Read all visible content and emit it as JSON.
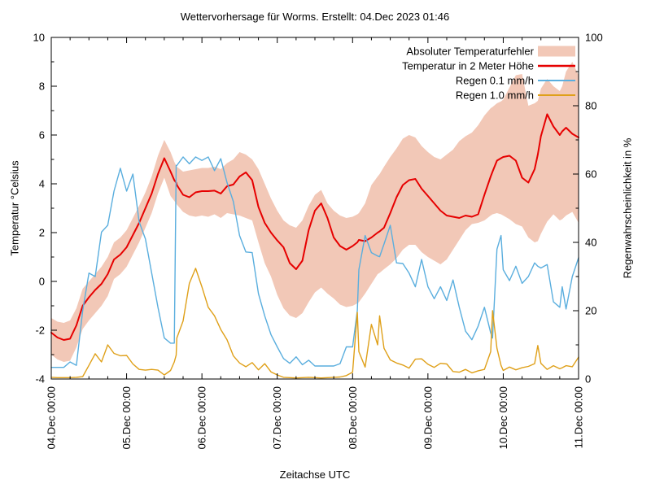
{
  "title": "Wettervorhersage für Worms. Erstellt: 04.Dec 2023 01:46",
  "chart_data": {
    "type": "line",
    "title": "Wettervorhersage für Worms. Erstellt: 04.Dec 2023 01:46",
    "x_label": "Zeitachse UTC",
    "x_tick_labels": [
      "04.Dec 00:00",
      "05.Dec 00:00",
      "06.Dec 00:00",
      "07.Dec 00:00",
      "08.Dec 00:00",
      "09.Dec 00:00",
      "10.Dec 00:00",
      "11.Dec 00:00"
    ],
    "x_range_hours": [
      0,
      168
    ],
    "x_major_step_hours": 24,
    "x_minor_step_hours": 6,
    "grid": false,
    "legend_position": "top-right-inside",
    "y_left": {
      "label": "Temperatur °Celsius",
      "min": -4,
      "max": 10,
      "ticks": [
        10,
        8,
        6,
        4,
        2,
        0,
        -2,
        -4
      ],
      "minor_step": 1
    },
    "y_right": {
      "label": "Regenwahrscheinlichkeit in %",
      "min": 0,
      "max": 100,
      "ticks": [
        100,
        80,
        60,
        40,
        20,
        0
      ],
      "minor_step": 10
    },
    "x_hours": [
      0,
      2,
      4,
      6,
      8,
      10,
      12,
      14,
      16,
      18,
      20,
      22,
      24,
      26,
      28,
      30,
      32,
      34,
      36,
      38,
      39.2,
      39.8,
      40,
      42,
      44,
      46,
      48,
      50,
      52,
      54,
      56,
      58,
      60,
      62,
      64,
      66,
      68,
      70,
      72,
      74,
      76,
      78,
      80,
      82,
      84,
      86,
      88,
      90,
      92,
      94,
      96,
      97.5,
      98,
      100,
      102,
      104,
      104.6,
      106,
      108,
      110,
      112,
      114,
      116,
      118,
      120,
      122,
      124,
      126,
      128,
      130,
      132,
      134,
      136,
      138,
      140,
      140.6,
      142,
      143.3,
      144,
      146,
      148,
      150,
      152,
      154,
      155,
      156,
      158,
      160,
      162,
      162.8,
      164,
      166,
      168
    ],
    "series": [
      {
        "name": "Absoluter Temperaturfehler",
        "kind": "band",
        "axis": "left",
        "color": "#f2c8b7",
        "upper": [
          -1.5,
          -1.65,
          -1.7,
          -1.6,
          -1.1,
          -0.3,
          0.0,
          0.3,
          0.6,
          1.0,
          1.6,
          1.8,
          2.1,
          2.6,
          3.1,
          3.65,
          4.3,
          5.15,
          5.8,
          5.3,
          4.9,
          4.75,
          4.7,
          4.5,
          4.55,
          4.6,
          4.65,
          4.65,
          4.7,
          4.6,
          4.85,
          5.0,
          5.3,
          5.2,
          5.0,
          4.6,
          4.0,
          3.4,
          2.9,
          2.5,
          2.3,
          2.2,
          2.5,
          3.1,
          3.55,
          3.75,
          3.2,
          2.9,
          2.7,
          2.6,
          2.65,
          2.75,
          2.8,
          3.2,
          3.95,
          4.3,
          4.4,
          4.7,
          5.1,
          5.45,
          5.85,
          6.0,
          5.9,
          5.55,
          5.3,
          5.1,
          5.0,
          5.2,
          5.4,
          5.75,
          5.95,
          6.1,
          6.4,
          6.8,
          7.1,
          7.15,
          7.3,
          7.38,
          7.45,
          7.95,
          8.45,
          8.5,
          7.2,
          7.3,
          7.4,
          7.9,
          8.3,
          8.0,
          7.8,
          8.0,
          8.6,
          9.0,
          8.45
        ],
        "lower": [
          -3.0,
          -3.2,
          -3.3,
          -3.25,
          -2.7,
          -1.95,
          -1.6,
          -1.3,
          -1.0,
          -0.6,
          0.1,
          0.3,
          0.6,
          1.1,
          1.6,
          2.2,
          2.8,
          3.6,
          4.25,
          3.5,
          3.3,
          3.2,
          3.15,
          2.85,
          2.7,
          2.65,
          2.7,
          2.65,
          2.75,
          2.6,
          2.8,
          2.75,
          2.7,
          2.6,
          2.5,
          1.6,
          0.75,
          0.2,
          -0.55,
          -1.1,
          -1.4,
          -1.5,
          -1.3,
          -0.85,
          -0.45,
          -0.25,
          -0.5,
          -0.7,
          -0.95,
          -1.05,
          -1.0,
          -0.9,
          -0.85,
          -0.5,
          -0.1,
          0.3,
          0.35,
          0.5,
          0.7,
          0.95,
          1.3,
          1.5,
          1.5,
          1.2,
          1.0,
          0.85,
          0.7,
          0.9,
          1.3,
          1.7,
          2.1,
          2.35,
          2.4,
          2.5,
          2.7,
          2.75,
          2.8,
          2.75,
          2.7,
          2.55,
          2.35,
          2.25,
          1.8,
          1.6,
          1.65,
          1.95,
          2.45,
          2.75,
          2.5,
          2.55,
          2.7,
          2.85,
          2.4
        ]
      },
      {
        "name": "Temperatur in 2 Meter Höhe",
        "kind": "line",
        "axis": "left",
        "color": "#e60000",
        "width": 2,
        "values": [
          -2.1,
          -2.3,
          -2.4,
          -2.35,
          -1.8,
          -1.0,
          -0.65,
          -0.35,
          -0.1,
          0.3,
          0.9,
          1.1,
          1.4,
          1.9,
          2.4,
          3.0,
          3.6,
          4.4,
          5.05,
          4.5,
          4.15,
          4.05,
          3.95,
          3.55,
          3.45,
          3.65,
          3.7,
          3.7,
          3.72,
          3.6,
          3.9,
          3.97,
          4.3,
          4.47,
          4.15,
          3.05,
          2.4,
          2.0,
          1.68,
          1.4,
          0.75,
          0.5,
          0.85,
          2.1,
          2.9,
          3.2,
          2.6,
          1.8,
          1.45,
          1.3,
          1.45,
          1.6,
          1.7,
          1.65,
          1.8,
          2.0,
          2.05,
          2.2,
          2.8,
          3.45,
          3.95,
          4.15,
          4.2,
          3.8,
          3.5,
          3.2,
          2.9,
          2.7,
          2.65,
          2.6,
          2.7,
          2.65,
          2.75,
          3.55,
          4.3,
          4.5,
          4.95,
          5.05,
          5.1,
          5.15,
          4.95,
          4.25,
          4.05,
          4.6,
          5.2,
          5.95,
          6.85,
          6.35,
          6.0,
          6.15,
          6.3,
          6.05,
          5.9
        ]
      },
      {
        "name": "Regen 0.1 mm/h",
        "kind": "line",
        "axis": "right",
        "color": "#5aaede",
        "width": 1.4,
        "values": [
          3.4,
          3.4,
          3.4,
          5.0,
          4.0,
          20,
          31,
          30,
          43,
          45,
          55,
          61.7,
          55,
          60,
          46,
          41,
          31,
          21,
          12,
          10.5,
          10.5,
          62.5,
          62.5,
          65,
          63,
          65,
          64,
          65,
          61,
          64.5,
          57.5,
          52,
          42,
          37.2,
          37,
          25,
          18.5,
          13,
          9.4,
          6,
          4.6,
          6.5,
          4.2,
          5.5,
          3.8,
          3.8,
          3.8,
          3.8,
          4.5,
          9.4,
          9.4,
          20,
          32,
          42,
          37,
          36,
          35.8,
          39.5,
          45,
          34,
          33.8,
          31,
          27,
          35,
          27,
          23.5,
          27,
          23,
          29,
          21,
          14,
          11.5,
          15.5,
          21,
          13.5,
          12,
          38,
          42,
          32,
          28.8,
          33,
          28,
          30,
          34,
          33,
          32.5,
          33.5,
          22.6,
          21,
          27,
          20.5,
          30,
          35.5
        ]
      },
      {
        "name": "Regen 1.0 mm/h",
        "kind": "line",
        "axis": "right",
        "color": "#dfa019",
        "width": 1.4,
        "values": [
          0.5,
          0.4,
          0.4,
          0.4,
          0.5,
          0.7,
          4,
          7.4,
          5,
          10,
          7.5,
          6.8,
          6.9,
          4.4,
          2.8,
          2.6,
          2.8,
          2.6,
          1.2,
          2.5,
          5,
          7,
          12,
          17,
          28,
          32.4,
          27,
          21,
          18.5,
          14.5,
          11.5,
          6.8,
          4.7,
          3.6,
          4.8,
          2.7,
          4.5,
          2.1,
          1.2,
          0.5,
          0.4,
          0.3,
          0.4,
          0.5,
          0.4,
          0.3,
          0.4,
          0.5,
          0.6,
          1.0,
          2.0,
          19.5,
          8,
          3.5,
          16,
          10,
          18.5,
          9,
          5.6,
          4.7,
          4.1,
          3.2,
          5.8,
          5.9,
          4.3,
          3.4,
          4.6,
          4.4,
          2.2,
          2.0,
          2.8,
          1.8,
          2.4,
          2.8,
          8,
          20,
          9,
          4,
          2.5,
          3.5,
          2.7,
          3.3,
          3.7,
          4.5,
          9.8,
          4.6,
          2.8,
          3.9,
          3.0,
          3.3,
          3.9,
          3.6,
          6.4
        ]
      }
    ]
  }
}
